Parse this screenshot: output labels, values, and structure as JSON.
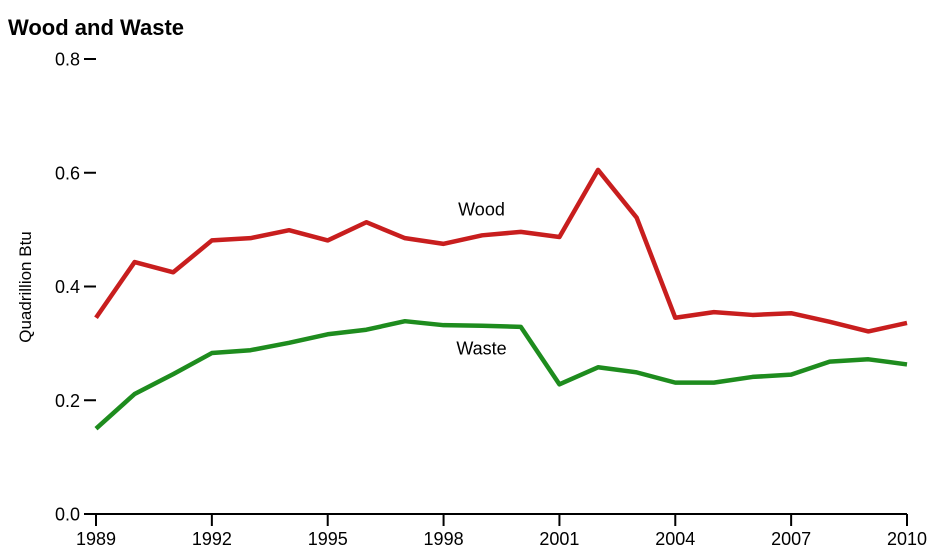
{
  "chart_data": {
    "type": "line",
    "title": "Wood and Waste",
    "xlabel": "",
    "ylabel": "Quadrillion Btu",
    "xlim": [
      1989,
      2010
    ],
    "ylim": [
      0.0,
      0.8
    ],
    "x": [
      1989,
      1990,
      1991,
      1992,
      1993,
      1994,
      1995,
      1996,
      1997,
      1998,
      1999,
      2000,
      2001,
      2002,
      2003,
      2004,
      2005,
      2006,
      2007,
      2008,
      2009,
      2010
    ],
    "x_ticks": [
      1989,
      1992,
      1995,
      1998,
      2001,
      2004,
      2007,
      2010
    ],
    "y_ticks": [
      0.0,
      0.2,
      0.4,
      0.6,
      0.8
    ],
    "y_tick_labels": [
      "0.0",
      "0.2",
      "0.4",
      "0.6",
      "0.8"
    ],
    "grid": false,
    "series": [
      {
        "name": "Wood",
        "color": "#c81e1e",
        "values": [
          0.345,
          0.443,
          0.425,
          0.481,
          0.485,
          0.499,
          0.481,
          0.513,
          0.485,
          0.475,
          0.49,
          0.496,
          0.487,
          0.605,
          0.521,
          0.345,
          0.355,
          0.35,
          0.353,
          0.338,
          0.321,
          0.336
        ]
      },
      {
        "name": "Waste",
        "color": "#1e8c1e",
        "values": [
          0.15,
          0.211,
          0.246,
          0.283,
          0.288,
          0.301,
          0.316,
          0.324,
          0.339,
          0.332,
          0.331,
          0.329,
          0.228,
          0.258,
          0.249,
          0.231,
          0.231,
          0.241,
          0.245,
          0.268,
          0.272,
          0.263
        ]
      }
    ]
  }
}
